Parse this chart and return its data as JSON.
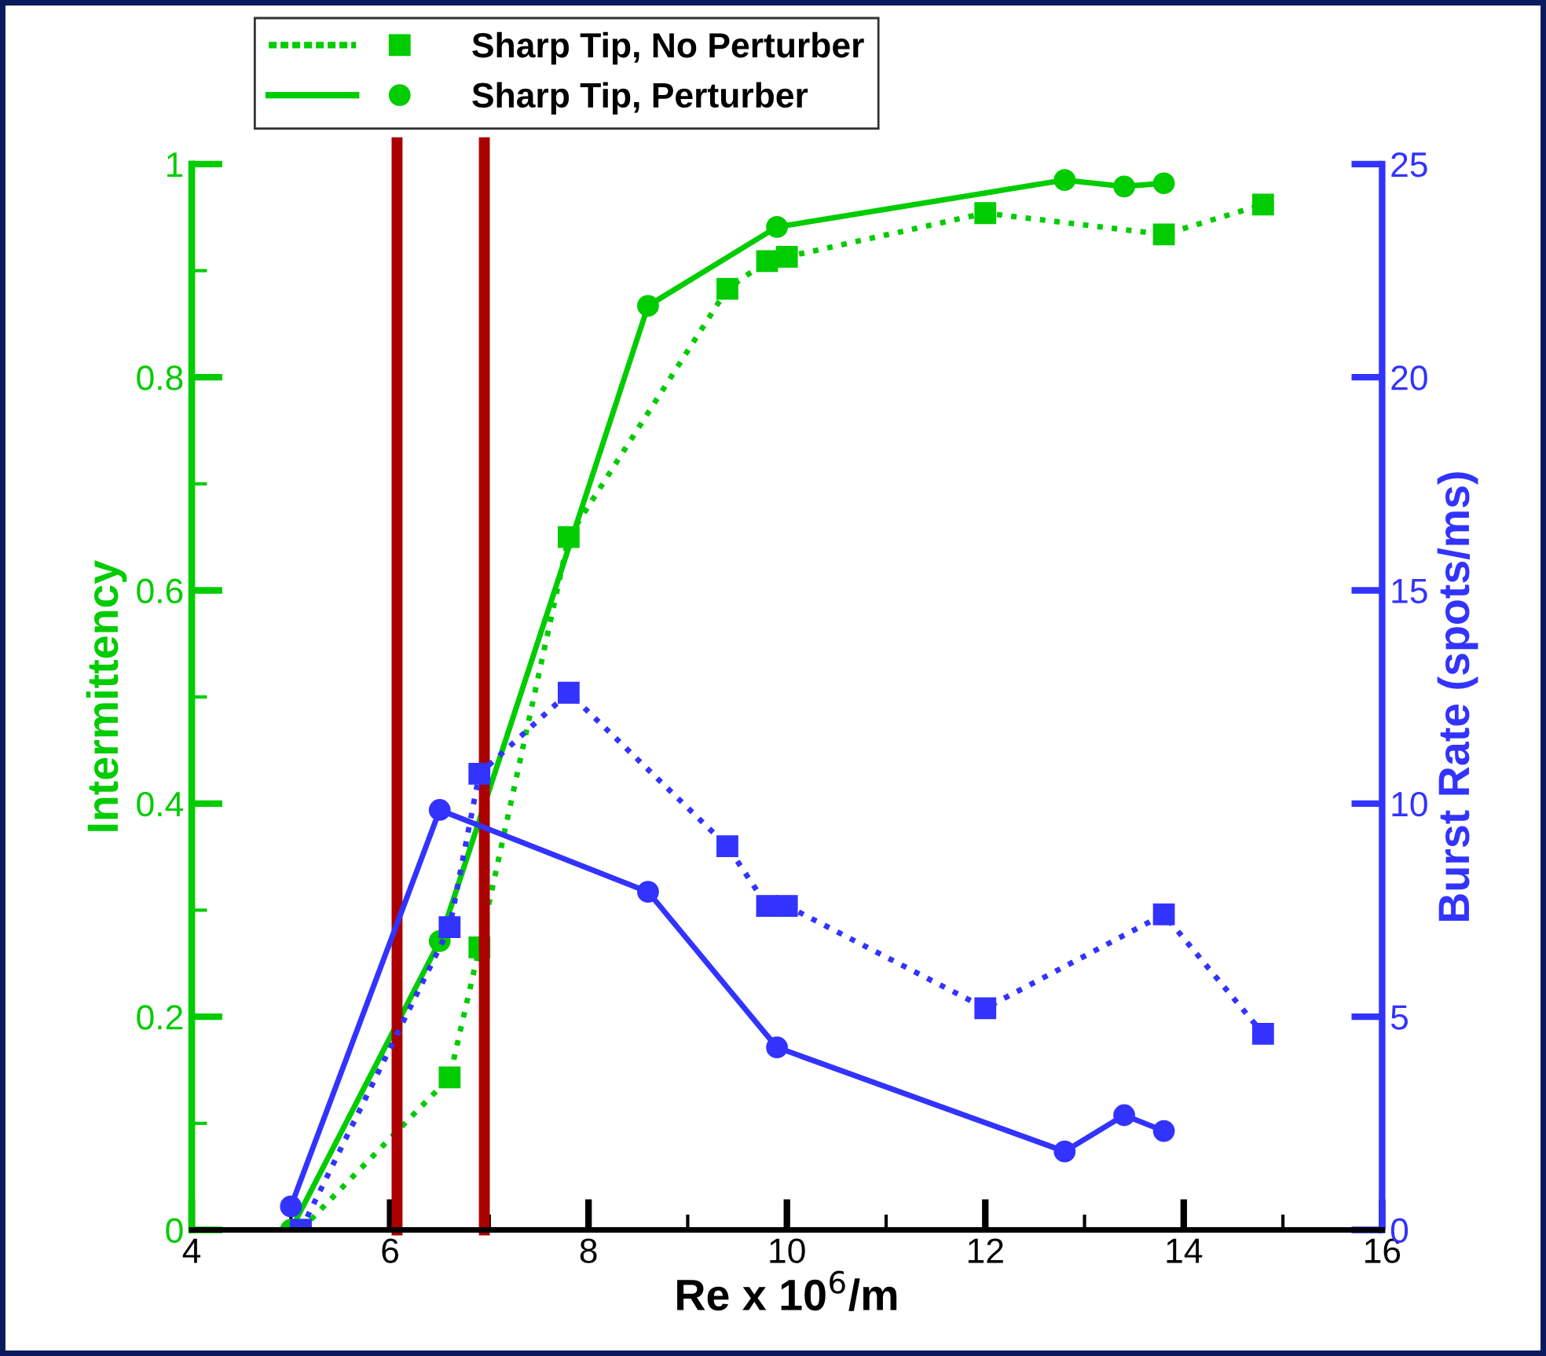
{
  "chart_data": {
    "type": "line",
    "xlabel": "Re x 10$^{6}$/m",
    "ylabel": "Intermittency",
    "y2label": "Burst Rate (spots/ms)",
    "xlim": [
      4,
      16
    ],
    "xticks": [
      4,
      {
        "value": 5,
        "label": null
      },
      6,
      {
        "value": 7,
        "label": null
      },
      8,
      {
        "value": 9,
        "label": null
      },
      10,
      {
        "value": 11,
        "label": null
      },
      12,
      {
        "value": 13,
        "label": null
      },
      14,
      {
        "value": 15,
        "label": null
      },
      16
    ],
    "ylim": [
      0,
      1
    ],
    "yticks": [
      0,
      {
        "value": 0.1,
        "label": null
      },
      0.2,
      {
        "value": 0.3,
        "label": null
      },
      0.4,
      {
        "value": 0.5,
        "label": null
      },
      0.6,
      {
        "value": 0.7,
        "label": null
      },
      0.8,
      {
        "value": 0.9,
        "label": null
      },
      1
    ],
    "y2lim": [
      0,
      25
    ],
    "y2ticks": [
      0,
      5,
      10,
      15,
      20,
      25
    ],
    "grid": false,
    "legend": "top",
    "series": [
      {
        "name": "Sharp Tip, No Perturber",
        "color": "#00cc00",
        "marker": "square",
        "line_style": "dotted",
        "x": [
          5.1,
          6.6,
          6.9,
          7.8,
          9.4,
          9.8,
          10.0,
          12.0,
          13.8,
          14.8
        ],
        "values": [
          0.0,
          0.143,
          0.265,
          0.65,
          0.883,
          0.909,
          0.913,
          0.954,
          0.934,
          0.962
        ]
      },
      {
        "name": "Sharp Tip, Perturber",
        "color": "#00cc00",
        "marker": "circle",
        "line_style": "solid",
        "x": [
          5.0,
          6.5,
          8.6,
          9.9,
          12.8,
          13.4,
          13.8
        ],
        "values": [
          0.0,
          0.271,
          0.867,
          0.941,
          0.985,
          0.979,
          0.982
        ]
      },
      {
        "color": "#3333ff",
        "marker": "square",
        "line_style": "dotted",
        "axis": "y2",
        "x": [
          5.1,
          6.6,
          6.9,
          7.8,
          9.4,
          9.8,
          10.0,
          12.0,
          13.8,
          14.8
        ],
        "values": [
          0.0,
          7.1,
          10.7,
          12.6,
          9.0,
          7.6,
          7.6,
          5.2,
          7.4,
          4.6
        ]
      },
      {
        "color": "#3333ff",
        "marker": "circle",
        "line_style": "solid",
        "axis": "y2",
        "x": [
          5.0,
          6.5,
          8.6,
          9.9,
          12.8,
          13.4,
          13.8
        ],
        "values": [
          0.55,
          9.85,
          7.93,
          4.28,
          1.84,
          2.69,
          2.32
        ]
      }
    ],
    "ref_lines": [
      {
        "axis": "x",
        "value": 6.07,
        "color": "#aa0000"
      },
      {
        "axis": "x",
        "value": 6.95,
        "color": "#aa0000"
      }
    ]
  }
}
